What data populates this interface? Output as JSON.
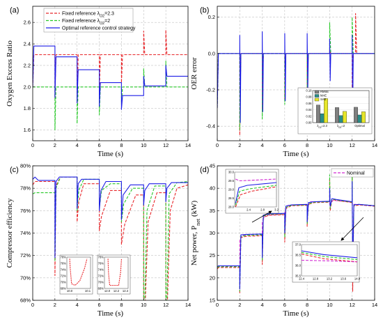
{
  "colors": {
    "red": "#e8262a",
    "green": "#26c826",
    "blue": "#1e1ee6",
    "magenta": "#d22ad2",
    "gray": "#808080",
    "teal": "#2a8c88",
    "yellow": "#e6e62a",
    "black": "#202020"
  },
  "chart_data": [
    {
      "id": "a",
      "type": "line",
      "panel_label": "(a)",
      "xlabel": "Time (s)",
      "ylabel": "Oxygen Excess Ratio",
      "xlim": [
        0,
        14
      ],
      "ylim": [
        1.5,
        2.75
      ],
      "xticks": [
        0,
        2,
        4,
        6,
        8,
        10,
        12,
        14
      ],
      "yticks": [
        1.6,
        1.8,
        2.0,
        2.2,
        2.4,
        2.6
      ],
      "grid": true,
      "legend_position": "top-left",
      "series": [
        {
          "name": "Fixed reference λ_O2=2.3",
          "color_key": "red",
          "style": "dashed",
          "x": [
            0,
            0.1,
            2.0,
            2.0,
            2.1,
            4.0,
            4.0,
            4.1,
            6.0,
            6.0,
            6.1,
            8.0,
            8.0,
            8.1,
            10.0,
            10.0,
            10.1,
            12.0,
            12.0,
            12.1,
            14.0
          ],
          "y": [
            2.0,
            2.3,
            2.3,
            1.9,
            2.3,
            2.3,
            1.85,
            2.3,
            2.3,
            1.92,
            2.3,
            2.3,
            2.04,
            2.3,
            2.3,
            2.52,
            2.3,
            2.3,
            2.53,
            2.3,
            2.3
          ]
        },
        {
          "name": "Fixed reference λ_O2=2",
          "color_key": "green",
          "style": "dashed",
          "x": [
            0,
            0.1,
            2.0,
            2.0,
            2.1,
            4.0,
            4.0,
            4.1,
            6.0,
            6.0,
            6.1,
            8.0,
            8.0,
            8.1,
            10.0,
            10.0,
            10.1,
            12.0,
            12.0,
            12.1,
            14.0
          ],
          "y": [
            2.0,
            2.0,
            2.0,
            1.6,
            2.0,
            2.0,
            1.66,
            2.0,
            2.0,
            1.74,
            2.0,
            2.0,
            1.84,
            2.0,
            2.0,
            2.17,
            2.0,
            2.0,
            2.24,
            2.0,
            2.0
          ]
        },
        {
          "name": "Optimal reference control strategy",
          "color_key": "blue",
          "style": "solid",
          "x": [
            0,
            0.1,
            2.0,
            2.0,
            2.1,
            4.0,
            4.0,
            4.1,
            6.0,
            6.0,
            6.1,
            8.0,
            8.0,
            8.1,
            10.0,
            10.0,
            10.1,
            12.0,
            12.0,
            12.1,
            14.0
          ],
          "y": [
            2.0,
            2.38,
            2.38,
            1.9,
            2.28,
            2.28,
            1.85,
            2.16,
            2.16,
            1.82,
            2.04,
            2.04,
            1.79,
            1.92,
            1.92,
            2.1,
            2.01,
            2.01,
            2.2,
            2.1,
            2.1
          ]
        }
      ]
    },
    {
      "id": "b",
      "type": "line",
      "panel_label": "(b)",
      "xlabel": "Time (s)",
      "ylabel": "OER error",
      "xlim": [
        0,
        14
      ],
      "ylim": [
        -0.48,
        0.26
      ],
      "xticks": [
        0,
        2,
        4,
        6,
        8,
        10,
        12,
        14
      ],
      "yticks": [
        -0.4,
        -0.2,
        0.0,
        0.2
      ],
      "grid": true,
      "series": [
        {
          "color_key": "red",
          "style": "dashed",
          "x": [
            0,
            0.1,
            2.0,
            2.0,
            2.1,
            4.0,
            4.0,
            4.1,
            6.0,
            6.0,
            6.1,
            8.0,
            8.0,
            8.1,
            10.0,
            10.0,
            10.1,
            12.0,
            12.0,
            12.1,
            12.3,
            12.3,
            12.4,
            14.0
          ],
          "y": [
            -0.3,
            0.0,
            0.0,
            -0.45,
            0.0,
            0.0,
            -0.32,
            0.0,
            0.0,
            -0.25,
            0.0,
            0.0,
            -0.2,
            0.0,
            0.0,
            0.02,
            0.0,
            0.0,
            -0.42,
            0.0,
            0.0,
            0.22,
            0.0,
            0.0
          ]
        },
        {
          "color_key": "green",
          "style": "dashed",
          "x": [
            0,
            0.1,
            2.0,
            2.0,
            2.1,
            4.0,
            4.0,
            4.1,
            6.0,
            6.0,
            6.1,
            8.0,
            8.0,
            8.1,
            10.0,
            10.0,
            10.1,
            12.0,
            12.0,
            12.1,
            14.0
          ],
          "y": [
            -0.3,
            0.0,
            0.0,
            -0.42,
            0.0,
            0.0,
            -0.36,
            0.0,
            0.0,
            -0.28,
            0.0,
            0.0,
            -0.2,
            0.0,
            0.0,
            0.17,
            0.0,
            0.0,
            0.2,
            0.0,
            0.0
          ]
        },
        {
          "color_key": "blue",
          "style": "solid",
          "x": [
            0,
            0.1,
            2.0,
            2.0,
            2.05,
            2.1,
            4.0,
            4.0,
            4.05,
            4.1,
            6.0,
            6.0,
            6.05,
            6.1,
            8.0,
            8.0,
            8.05,
            8.1,
            10.0,
            10.0,
            10.05,
            10.1,
            12.0,
            12.0,
            12.05,
            12.1,
            14.0
          ],
          "y": [
            -0.3,
            0.0,
            0.0,
            0.1,
            -0.38,
            0.0,
            0.0,
            0.12,
            -0.32,
            0.0,
            0.0,
            0.11,
            -0.26,
            0.0,
            0.0,
            0.11,
            -0.2,
            0.0,
            0.0,
            0.08,
            -0.15,
            0.0,
            0.0,
            0.1,
            -0.32,
            0.0,
            0.0
          ]
        }
      ],
      "inset": {
        "type": "bar",
        "categories": [
          "λ_O2=2.3",
          "λ_O2=2",
          "Optimal"
        ],
        "ylim": [
          0,
          0.1
        ],
        "yticks": [
          "0.10",
          "0.08",
          "0.06",
          "0.04",
          "0.02",
          "0.00"
        ],
        "legend": [
          {
            "name": "RMSE",
            "color_key": "gray"
          },
          {
            "name": "MAE",
            "color_key": "teal"
          },
          {
            "name": "SAE",
            "color_key": "yellow"
          }
        ],
        "groups": [
          {
            "category": "λ_O2=2.3",
            "values": [
              0.055,
              0.028,
              0.075
            ]
          },
          {
            "category": "λ_O2=2",
            "values": [
              0.047,
              0.022,
              0.035
            ]
          },
          {
            "category": "Optimal",
            "values": [
              0.048,
              0.024,
              0.034
            ]
          }
        ]
      }
    },
    {
      "id": "c",
      "type": "line",
      "panel_label": "(c)",
      "xlabel": "Time (s)",
      "ylabel": "Compressor efficiency",
      "xlim": [
        0,
        14
      ],
      "ylim": [
        68,
        80
      ],
      "xticks": [
        0,
        2,
        4,
        6,
        8,
        10,
        12,
        14
      ],
      "yticks": [
        "68%",
        "70%",
        "72%",
        "74%",
        "76%",
        "78%",
        "80%"
      ],
      "grid": true,
      "series": [
        {
          "color_key": "red",
          "style": "dashed",
          "x": [
            0,
            0.2,
            2.0,
            2.0,
            2.1,
            2.5,
            4.0,
            4.0,
            4.15,
            4.6,
            6.0,
            6.0,
            6.2,
            7.0,
            8.0,
            8.0,
            8.3,
            9.3,
            10.0,
            10.0,
            10.15,
            10.4,
            11.2,
            12.0,
            12.0,
            12.15,
            12.4,
            13.0,
            14.0
          ],
          "y": [
            78.3,
            78.6,
            78.6,
            70.2,
            78.2,
            79.0,
            79.0,
            75.0,
            76.8,
            78.4,
            78.4,
            74.2,
            75.5,
            77.8,
            77.8,
            73.0,
            74.8,
            77.4,
            77.4,
            68.0,
            68.0,
            75.0,
            77.6,
            77.6,
            68.0,
            68.0,
            76.0,
            78.0,
            78.3
          ]
        },
        {
          "color_key": "green",
          "style": "dashed",
          "x": [
            0,
            0.2,
            2.0,
            2.0,
            2.1,
            2.5,
            4.0,
            4.0,
            4.15,
            4.6,
            6.0,
            6.0,
            6.2,
            7.0,
            8.0,
            8.0,
            8.2,
            9.0,
            10.0,
            10.0,
            10.1,
            10.3,
            11.0,
            12.0,
            12.0,
            12.1,
            12.3,
            13.0,
            14.0
          ],
          "y": [
            77.5,
            77.6,
            77.6,
            71.5,
            78.0,
            79.0,
            79.0,
            76.0,
            77.8,
            78.8,
            78.8,
            76.2,
            77.8,
            78.4,
            78.4,
            75.0,
            76.6,
            78.0,
            78.0,
            68.0,
            68.0,
            76.0,
            78.2,
            78.2,
            68.0,
            68.0,
            77.5,
            78.5,
            78.6
          ]
        },
        {
          "color_key": "blue",
          "style": "solid",
          "x": [
            0,
            0.2,
            0.5,
            2.0,
            2.0,
            2.1,
            2.4,
            4.0,
            4.0,
            4.1,
            4.4,
            6.0,
            6.0,
            6.15,
            6.6,
            8.0,
            8.0,
            8.15,
            8.8,
            10.0,
            10.0,
            10.1,
            10.5,
            12.0,
            12.0,
            12.1,
            12.5,
            14.0
          ],
          "y": [
            78.8,
            79.0,
            78.7,
            78.7,
            71.8,
            78.6,
            79.0,
            79.0,
            76.2,
            78.4,
            78.8,
            78.8,
            76.0,
            77.8,
            78.6,
            78.6,
            75.2,
            77.4,
            78.3,
            78.3,
            76.5,
            77.8,
            78.4,
            78.4,
            76.8,
            78.0,
            78.5,
            78.5
          ]
        }
      ],
      "insets": [
        {
          "xticks": [
            "10.0",
            "10.1"
          ],
          "yticks": [
            "78%",
            "76%",
            "74%",
            "72%",
            "70%",
            "68%"
          ]
        },
        {
          "xticks": [
            "12.0",
            "12.2",
            "12.4"
          ],
          "yticks": [
            "78%",
            "76%",
            "74%",
            "72%",
            "70%",
            "68%"
          ]
        }
      ]
    },
    {
      "id": "d",
      "type": "line",
      "panel_label": "(d)",
      "xlabel": "Time (s)",
      "ylabel": "Net power, P_net (kW)",
      "xlim": [
        0,
        14
      ],
      "ylim": [
        15,
        45
      ],
      "xticks": [
        0,
        2,
        4,
        6,
        8,
        10,
        12,
        14
      ],
      "yticks": [
        15,
        20,
        25,
        30,
        35,
        40,
        45
      ],
      "grid": true,
      "legend_position": "top-right",
      "series": [
        {
          "name": "Nominal",
          "color_key": "magenta",
          "style": "dashed",
          "x": [
            0,
            2.0,
            2.0,
            2.3,
            4.0,
            4.0,
            4.3,
            6.0,
            6.0,
            6.3,
            8.0,
            8.0,
            8.3,
            10.0,
            10.0,
            10.3,
            12.0,
            12.0,
            12.3,
            14.0
          ],
          "y": [
            22.5,
            22.6,
            28.5,
            29.5,
            29.6,
            32.5,
            34.0,
            34.2,
            34.8,
            36.2,
            36.3,
            35.8,
            37.0,
            37.0,
            36.4,
            37.3,
            36.9,
            36.4,
            36.4,
            36.1
          ]
        },
        {
          "color_key": "red",
          "style": "dashed",
          "x": [
            0,
            0.1,
            2.0,
            2.0,
            2.1,
            2.6,
            4.0,
            4.0,
            4.1,
            4.6,
            6.0,
            6.0,
            6.1,
            6.6,
            8.0,
            8.0,
            8.1,
            8.6,
            10.0,
            10.0,
            10.05,
            10.2,
            10.6,
            12.0,
            12.0,
            12.05,
            12.15,
            12.6,
            14.0
          ],
          "y": [
            22.0,
            22.3,
            22.3,
            16.5,
            29.0,
            29.3,
            29.4,
            23.0,
            33.5,
            34.0,
            34.1,
            28.0,
            35.5,
            36.1,
            36.2,
            31.5,
            36.4,
            36.8,
            36.9,
            42.0,
            35.0,
            37.5,
            37.3,
            36.8,
            43.0,
            17.0,
            36.0,
            36.3,
            36.0
          ]
        },
        {
          "color_key": "green",
          "style": "dashed",
          "x": [
            0,
            0.1,
            2.0,
            2.0,
            2.1,
            2.6,
            4.0,
            4.0,
            4.1,
            4.6,
            6.0,
            6.0,
            6.1,
            6.6,
            8.0,
            8.0,
            8.1,
            8.6,
            10.0,
            10.0,
            10.05,
            10.2,
            10.6,
            12.0,
            12.0,
            12.05,
            12.15,
            12.6,
            14.0
          ],
          "y": [
            22.3,
            22.5,
            22.5,
            17.0,
            29.2,
            29.5,
            29.6,
            24.0,
            33.8,
            34.2,
            34.3,
            29.0,
            35.7,
            36.2,
            36.3,
            32.0,
            36.5,
            36.9,
            37.0,
            43.0,
            35.5,
            37.6,
            37.4,
            36.9,
            44.0,
            20.0,
            36.2,
            36.4,
            36.1
          ]
        },
        {
          "color_key": "blue",
          "style": "solid",
          "x": [
            0,
            0.1,
            2.0,
            2.0,
            2.1,
            2.6,
            4.0,
            4.0,
            4.1,
            4.6,
            6.0,
            6.0,
            6.1,
            6.6,
            8.0,
            8.0,
            8.1,
            8.6,
            10.0,
            10.0,
            10.05,
            10.2,
            10.6,
            12.0,
            12.0,
            12.05,
            12.15,
            12.6,
            14.0
          ],
          "y": [
            22.5,
            22.7,
            22.7,
            17.5,
            29.6,
            29.7,
            29.8,
            24.5,
            34.0,
            34.3,
            34.4,
            30.0,
            36.0,
            36.3,
            36.4,
            32.5,
            36.8,
            37.0,
            37.1,
            40.0,
            36.0,
            37.7,
            37.5,
            37.0,
            41.5,
            22.0,
            36.3,
            36.4,
            36.1
          ]
        }
      ],
      "insets": [
        {
          "xticks": [
            "2.4",
            "2.8",
            "3.2"
          ],
          "xlim": [
            2.0,
            3.2
          ],
          "yticks": [
            "30.0",
            "29.5",
            "29.0",
            "28.5",
            "28.0"
          ],
          "ylim": [
            28.0,
            30.0
          ]
        },
        {
          "xticks": [
            "12.4",
            "12.8",
            "13.2",
            "13.6",
            "14.0"
          ],
          "xlim": [
            12.4,
            14.0
          ],
          "yticks": [
            "37.0",
            "36.5",
            "36.0",
            "35.5"
          ],
          "ylim": [
            35.5,
            37.0
          ]
        }
      ]
    }
  ]
}
